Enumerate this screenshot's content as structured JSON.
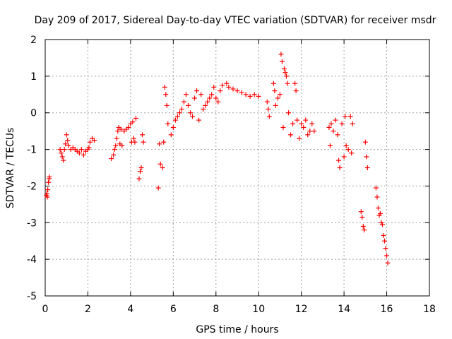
{
  "chart_data": {
    "type": "scatter",
    "title": "Day 209 of 2017, Sidereal Day-to-day VTEC variation (SDTVAR) for receiver msdr",
    "xlabel": "GPS time / hours",
    "ylabel": "SDTVAR / TECUs",
    "xlim": [
      0,
      18
    ],
    "ylim": [
      -5,
      2
    ],
    "x_ticks": [
      "0",
      "2",
      "4",
      "6",
      "8",
      "10",
      "12",
      "14",
      "16",
      "18"
    ],
    "y_ticks": [
      "-5",
      "-4",
      "-3",
      "-2",
      "-1",
      "0",
      "1",
      "2"
    ],
    "grid": true,
    "marker": "+",
    "color": "#ff0000",
    "series": [
      {
        "name": "SDTVAR",
        "x": [
          0.05,
          0.08,
          0.1,
          0.12,
          0.15,
          0.18,
          0.2,
          0.7,
          0.75,
          0.8,
          0.85,
          0.9,
          0.95,
          1.0,
          1.05,
          1.1,
          1.2,
          1.3,
          1.4,
          1.5,
          1.6,
          1.7,
          1.8,
          1.9,
          2.0,
          2.05,
          2.1,
          2.2,
          2.3,
          3.1,
          3.2,
          3.25,
          3.3,
          3.35,
          3.4,
          3.45,
          3.5,
          3.55,
          3.6,
          3.7,
          3.8,
          3.9,
          4.0,
          4.05,
          4.1,
          4.15,
          4.2,
          4.25,
          4.4,
          4.45,
          4.5,
          4.55,
          4.6,
          5.3,
          5.35,
          5.4,
          5.5,
          5.55,
          5.6,
          5.65,
          5.7,
          5.75,
          5.9,
          6.0,
          6.1,
          6.2,
          6.3,
          6.4,
          6.5,
          6.6,
          6.7,
          6.8,
          6.9,
          7.0,
          7.1,
          7.2,
          7.3,
          7.4,
          7.5,
          7.6,
          7.7,
          7.8,
          7.9,
          8.0,
          8.1,
          8.2,
          8.3,
          8.5,
          8.6,
          8.8,
          9.0,
          9.2,
          9.4,
          9.6,
          9.8,
          10.0,
          10.4,
          10.45,
          10.5,
          10.7,
          10.75,
          10.8,
          10.9,
          11.0,
          11.05,
          11.1,
          11.15,
          11.2,
          11.25,
          11.3,
          11.35,
          11.4,
          11.5,
          11.6,
          11.7,
          11.75,
          11.8,
          11.9,
          12.0,
          12.1,
          12.2,
          12.3,
          12.4,
          12.5,
          12.6,
          13.3,
          13.35,
          13.4,
          13.5,
          13.6,
          13.7,
          13.75,
          13.8,
          13.9,
          14.0,
          14.05,
          14.1,
          14.2,
          14.3,
          14.35,
          14.4,
          14.8,
          14.85,
          14.9,
          14.95,
          15.0,
          15.05,
          15.1,
          15.5,
          15.55,
          15.6,
          15.65,
          15.7,
          15.75,
          15.8,
          15.85,
          15.9,
          15.95,
          16.0,
          16.05
        ],
        "y": [
          -2.25,
          -2.2,
          -2.3,
          -2.1,
          -1.9,
          -1.8,
          -1.75,
          -1.0,
          -1.1,
          -1.2,
          -1.3,
          -1.0,
          -0.85,
          -0.6,
          -0.75,
          -0.9,
          -1.0,
          -0.95,
          -1.0,
          -1.05,
          -1.1,
          -1.0,
          -1.15,
          -1.05,
          -1.0,
          -0.95,
          -0.8,
          -0.7,
          -0.75,
          -1.25,
          -1.15,
          -1.0,
          -0.9,
          -0.7,
          -0.5,
          -0.4,
          -0.85,
          -0.45,
          -0.9,
          -0.5,
          -0.45,
          -0.4,
          -0.3,
          -0.8,
          -0.25,
          -0.7,
          -0.8,
          -0.15,
          -1.8,
          -1.6,
          -1.5,
          -0.6,
          -0.8,
          -2.05,
          -0.85,
          -1.4,
          -1.5,
          -0.8,
          0.7,
          0.5,
          0.2,
          -0.3,
          -0.6,
          -0.4,
          -0.2,
          -0.1,
          0.0,
          0.1,
          0.3,
          0.5,
          0.2,
          0.0,
          -0.1,
          0.4,
          0.6,
          -0.2,
          0.5,
          0.1,
          0.2,
          0.3,
          0.4,
          0.5,
          0.7,
          0.4,
          0.3,
          0.6,
          0.75,
          0.8,
          0.7,
          0.65,
          0.6,
          0.55,
          0.5,
          0.45,
          0.5,
          0.45,
          0.3,
          0.1,
          -0.1,
          0.8,
          0.6,
          0.2,
          0.4,
          0.5,
          1.6,
          1.4,
          -0.4,
          1.2,
          1.1,
          1.0,
          0.8,
          0.0,
          -0.6,
          -0.3,
          0.8,
          0.6,
          -0.2,
          -0.7,
          -0.3,
          -0.4,
          -0.2,
          -0.6,
          -0.5,
          -0.3,
          -0.5,
          -0.4,
          -0.9,
          -0.3,
          -0.5,
          -0.2,
          -0.6,
          -1.3,
          -1.5,
          -0.3,
          -1.2,
          -0.1,
          -0.9,
          -1.0,
          -0.1,
          -1.1,
          -0.3,
          -2.7,
          -2.85,
          -3.1,
          -3.2,
          -0.8,
          -1.2,
          -1.5,
          -2.05,
          -2.3,
          -2.6,
          -2.8,
          -2.75,
          -3.0,
          -3.05,
          -3.35,
          -3.5,
          -3.7,
          -3.9,
          -4.1
        ]
      }
    ]
  }
}
